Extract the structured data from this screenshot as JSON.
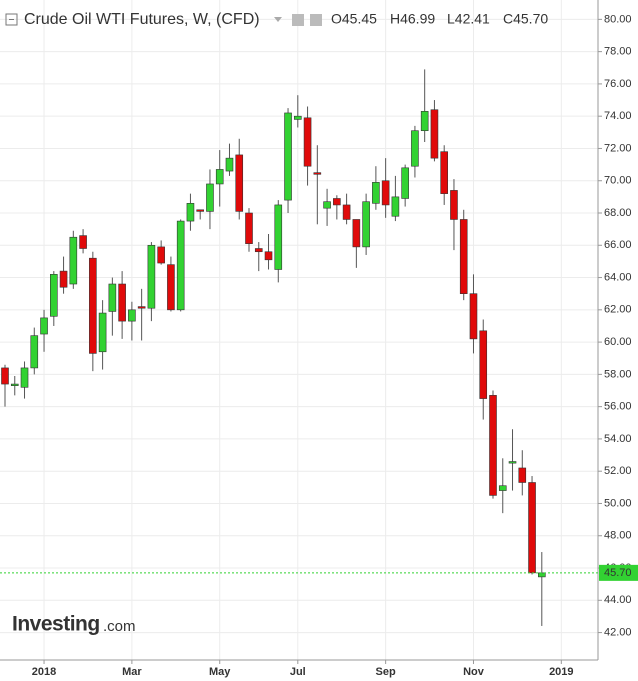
{
  "chart_data": {
    "type": "candlestick",
    "title": "Crude Oil WTI Futures, W, (CFD)",
    "header_values": [
      "O45.45",
      "H46.99",
      "L42.41",
      "C45.70"
    ],
    "watermark": [
      "Investing",
      ".com"
    ],
    "categories": [
      null,
      null,
      null,
      null,
      "2018",
      null,
      null,
      null,
      null,
      null,
      null,
      null,
      null,
      "Mar",
      null,
      null,
      null,
      null,
      null,
      null,
      null,
      null,
      "May",
      null,
      null,
      null,
      null,
      null,
      null,
      null,
      "Jul",
      null,
      null,
      null,
      null,
      null,
      null,
      null,
      null,
      "Sep",
      null,
      null,
      null,
      null,
      null,
      null,
      null,
      null,
      "Nov",
      null,
      null,
      null,
      null,
      null,
      null,
      null,
      null,
      "2019"
    ],
    "open": [
      58.4,
      57.3,
      57.2,
      58.4,
      60.5,
      61.6,
      64.4,
      63.6,
      66.6,
      65.2,
      59.4,
      61.9,
      63.6,
      61.3,
      62.2,
      62.1,
      65.9,
      64.8,
      62.0,
      67.5,
      68.2,
      68.1,
      69.8,
      70.6,
      71.6,
      68.0,
      65.8,
      65.6,
      64.5,
      68.8,
      73.8,
      73.9,
      70.5,
      68.3,
      68.9,
      68.5,
      67.6,
      65.9,
      68.6,
      70.0,
      67.8,
      68.9,
      70.9,
      73.1,
      74.4,
      71.8,
      69.4,
      67.6,
      63.0,
      60.7,
      56.7,
      50.8,
      52.5,
      52.2,
      51.3,
      45.45,
      null,
      null
    ],
    "high": [
      58.6,
      57.9,
      58.8,
      60.9,
      62.0,
      64.4,
      65.3,
      66.9,
      67.0,
      65.6,
      62.6,
      64.0,
      64.4,
      62.5,
      63.3,
      66.2,
      66.3,
      65.3,
      67.6,
      69.2,
      68.2,
      70.7,
      71.9,
      72.3,
      72.6,
      68.3,
      66.2,
      66.7,
      68.8,
      74.5,
      75.3,
      74.6,
      72.2,
      69.5,
      69.1,
      69.2,
      67.6,
      69.2,
      70.9,
      71.4,
      70.3,
      71.0,
      73.4,
      76.9,
      75.0,
      72.2,
      70.1,
      68.2,
      64.2,
      61.4,
      57.0,
      52.8,
      54.6,
      53.3,
      51.7,
      46.99,
      null,
      null
    ],
    "low": [
      56.0,
      56.7,
      56.5,
      58.0,
      59.4,
      61.0,
      63.0,
      63.3,
      65.5,
      58.2,
      58.3,
      60.4,
      60.2,
      60.1,
      60.1,
      61.3,
      64.8,
      61.9,
      61.9,
      66.9,
      67.6,
      67.0,
      68.4,
      70.3,
      67.6,
      65.6,
      64.4,
      64.5,
      63.7,
      68.0,
      73.3,
      69.7,
      67.3,
      67.2,
      67.6,
      67.3,
      64.6,
      65.4,
      68.2,
      67.7,
      67.5,
      68.4,
      70.2,
      72.4,
      71.2,
      68.5,
      65.7,
      62.6,
      59.3,
      55.2,
      50.3,
      49.4,
      50.8,
      50.5,
      45.6,
      42.41,
      null,
      null
    ],
    "close": [
      57.4,
      57.4,
      58.4,
      60.4,
      61.5,
      64.2,
      63.4,
      66.5,
      65.8,
      59.3,
      61.8,
      63.6,
      61.3,
      62.0,
      62.1,
      66.0,
      64.9,
      62.0,
      67.5,
      68.6,
      68.1,
      69.8,
      70.7,
      71.4,
      68.1,
      66.1,
      65.6,
      65.1,
      68.5,
      74.2,
      74.0,
      70.9,
      70.4,
      68.7,
      68.5,
      67.6,
      65.9,
      68.7,
      69.9,
      68.5,
      69.0,
      70.8,
      73.1,
      74.3,
      71.4,
      69.2,
      67.6,
      63.0,
      60.2,
      56.5,
      50.5,
      51.1,
      52.6,
      51.3,
      45.7,
      45.7,
      null,
      null
    ],
    "up_color": "#32d232",
    "down_color": "#e00a0a",
    "current_price": {
      "value": 45.7,
      "label": "45.70"
    },
    "ylim": [
      40.3,
      81.2
    ],
    "yticks": [
      {
        "value": 42,
        "label": "42.00"
      },
      {
        "value": 44,
        "label": "44.00"
      },
      {
        "value": 46,
        "label": "46.00"
      },
      {
        "value": 48,
        "label": "48.00"
      },
      {
        "value": 50,
        "label": "50.00"
      },
      {
        "value": 52,
        "label": "52.00"
      },
      {
        "value": 54,
        "label": "54.00"
      },
      {
        "value": 56,
        "label": "56.00"
      },
      {
        "value": 58,
        "label": "58.00"
      },
      {
        "value": 60,
        "label": "60.00"
      },
      {
        "value": 62,
        "label": "62.00"
      },
      {
        "value": 64,
        "label": "64.00"
      },
      {
        "value": 66,
        "label": "66.00"
      },
      {
        "value": 68,
        "label": "68.00"
      },
      {
        "value": 70,
        "label": "70.00"
      },
      {
        "value": 72,
        "label": "72.00"
      },
      {
        "value": 74,
        "label": "74.00"
      },
      {
        "value": 76,
        "label": "76.00"
      },
      {
        "value": 78,
        "label": "78.00"
      },
      {
        "value": 80,
        "label": "80.00"
      }
    ],
    "grid": true
  }
}
